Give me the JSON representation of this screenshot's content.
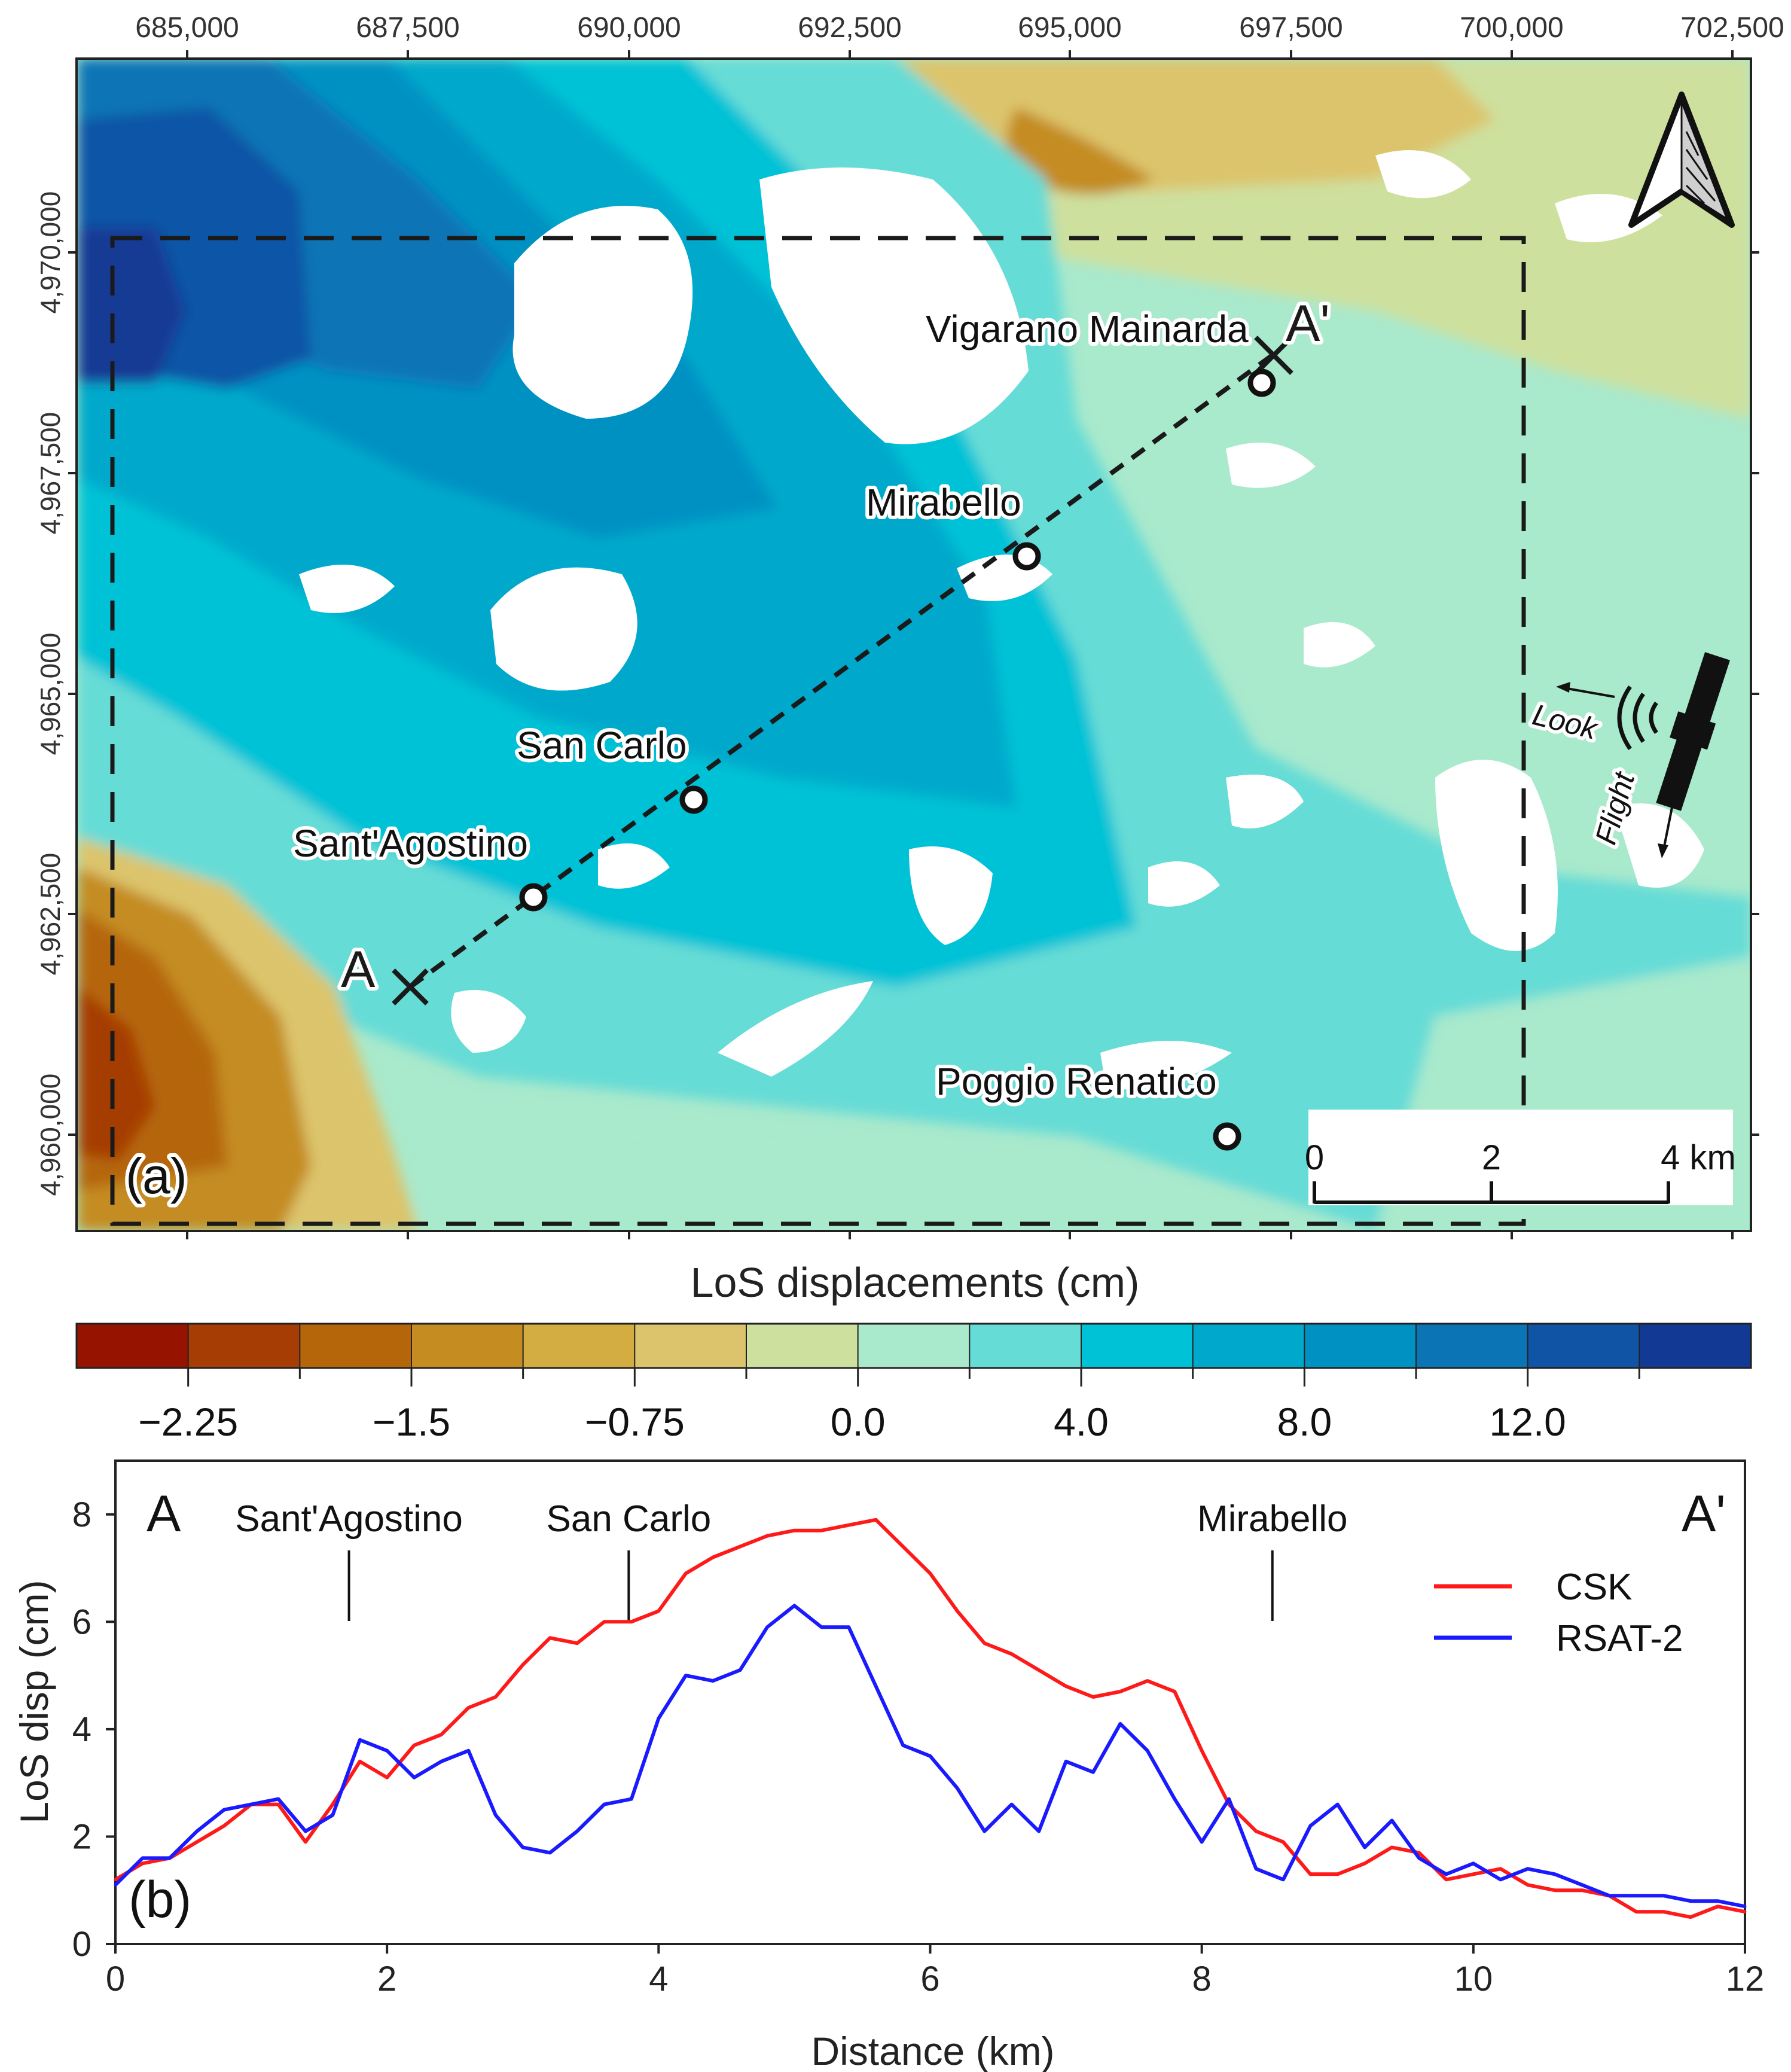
{
  "map": {
    "panel_label": "(a)",
    "x_ticks": [
      "685,000",
      "687,500",
      "690,000",
      "692,500",
      "695,000",
      "697,500",
      "700,000",
      "702,500"
    ],
    "y_ticks": [
      "4,970,000",
      "4,967,500",
      "4,965,000",
      "4,962,500",
      "4,960,000"
    ],
    "towns": [
      {
        "name": "Vigarano Mainarda"
      },
      {
        "name": "Mirabello"
      },
      {
        "name": "San Carlo"
      },
      {
        "name": "Sant'Agostino"
      },
      {
        "name": "Poggio Renatico"
      }
    ],
    "profile_start": "A",
    "profile_end": "A'",
    "scale_bar": {
      "ticks": [
        "0",
        "2",
        "4 km"
      ]
    },
    "satellite": {
      "look_label": "Look",
      "flight_label": "Flight"
    },
    "north_arrow": "north-arrow"
  },
  "colorbar": {
    "title": "LoS displacements (cm)",
    "tick_labels": [
      "−2.25",
      "−1.5",
      "−0.75",
      "0.0",
      "4.0",
      "8.0",
      "12.0"
    ],
    "colors": [
      "#961300",
      "#a63d05",
      "#b5660b",
      "#c48c21",
      "#d3ad42",
      "#dcc46c",
      "#cee09e",
      "#a9e9cc",
      "#66dcd6",
      "#00c2d6",
      "#00a9cb",
      "#0091c3",
      "#0a74b5",
      "#1054a6",
      "#123a95"
    ]
  },
  "chart_data": {
    "type": "line",
    "panel_label": "(b)",
    "xlabel": "Distance (km)",
    "ylabel": "LoS disp (cm)",
    "xlim": [
      0,
      12
    ],
    "ylim": [
      0,
      9
    ],
    "x_ticks": [
      "0",
      "2",
      "4",
      "6",
      "8",
      "10",
      "12"
    ],
    "y_ticks": [
      "0",
      "2",
      "4",
      "6",
      "8"
    ],
    "end_labels": [
      "A",
      "A'"
    ],
    "annotations": [
      {
        "label": "Sant'Agostino",
        "x": 1.72
      },
      {
        "label": "San Carlo",
        "x": 3.78
      },
      {
        "label": "Mirabello",
        "x": 8.52
      }
    ],
    "legend_position": "right",
    "series": [
      {
        "name": "CSK",
        "color": "#ff1a1a",
        "x": [
          0,
          0.2,
          0.4,
          0.6,
          0.8,
          1.0,
          1.2,
          1.4,
          1.6,
          1.8,
          2.0,
          2.2,
          2.4,
          2.6,
          2.8,
          3.0,
          3.2,
          3.4,
          3.6,
          3.8,
          4.0,
          4.2,
          4.4,
          4.6,
          4.8,
          5.0,
          5.2,
          5.4,
          5.6,
          5.8,
          6.0,
          6.2,
          6.4,
          6.6,
          6.8,
          7.0,
          7.2,
          7.4,
          7.6,
          7.8,
          8.0,
          8.2,
          8.4,
          8.6,
          8.8,
          9.0,
          9.2,
          9.4,
          9.6,
          9.8,
          10.0,
          10.2,
          10.4,
          10.6,
          10.8,
          11.0,
          11.2,
          11.4,
          11.6,
          11.8,
          12.0
        ],
        "y": [
          1.2,
          1.5,
          1.6,
          1.9,
          2.2,
          2.6,
          2.6,
          1.9,
          2.6,
          3.4,
          3.1,
          3.7,
          3.9,
          4.4,
          4.6,
          5.2,
          5.7,
          5.6,
          6.0,
          6.0,
          6.2,
          6.9,
          7.2,
          7.4,
          7.6,
          7.7,
          7.7,
          7.8,
          7.9,
          7.4,
          6.9,
          6.2,
          5.6,
          5.4,
          5.1,
          4.8,
          4.6,
          4.7,
          4.9,
          4.7,
          3.6,
          2.6,
          2.1,
          1.9,
          1.3,
          1.3,
          1.5,
          1.8,
          1.7,
          1.2,
          1.3,
          1.4,
          1.1,
          1.0,
          1.0,
          0.9,
          0.6,
          0.6,
          0.5,
          0.7,
          0.6
        ]
      },
      {
        "name": "RSAT-2",
        "color": "#1a1aff",
        "x": [
          0,
          0.2,
          0.4,
          0.6,
          0.8,
          1.0,
          1.2,
          1.4,
          1.6,
          1.8,
          2.0,
          2.2,
          2.4,
          2.6,
          2.8,
          3.0,
          3.2,
          3.4,
          3.6,
          3.8,
          4.0,
          4.2,
          4.4,
          4.6,
          4.8,
          5.0,
          5.2,
          5.4,
          5.6,
          5.8,
          6.0,
          6.2,
          6.4,
          6.6,
          6.8,
          7.0,
          7.2,
          7.4,
          7.6,
          7.8,
          8.0,
          8.2,
          8.4,
          8.6,
          8.8,
          9.0,
          9.2,
          9.4,
          9.6,
          9.8,
          10.0,
          10.2,
          10.4,
          10.6,
          10.8,
          11.0,
          11.2,
          11.4,
          11.6,
          11.8,
          12.0
        ],
        "y": [
          1.1,
          1.6,
          1.6,
          2.1,
          2.5,
          2.6,
          2.7,
          2.1,
          2.4,
          3.8,
          3.6,
          3.1,
          3.4,
          3.6,
          2.4,
          1.8,
          1.7,
          2.1,
          2.6,
          2.7,
          4.2,
          5.0,
          4.9,
          5.1,
          5.9,
          6.3,
          5.9,
          5.9,
          4.8,
          3.7,
          3.5,
          2.9,
          2.1,
          2.6,
          2.1,
          3.4,
          3.2,
          4.1,
          3.6,
          2.7,
          1.9,
          2.7,
          1.4,
          1.2,
          2.2,
          2.6,
          1.8,
          2.3,
          1.6,
          1.3,
          1.5,
          1.2,
          1.4,
          1.3,
          1.1,
          0.9,
          0.9,
          0.9,
          0.8,
          0.8,
          0.7
        ]
      }
    ]
  }
}
